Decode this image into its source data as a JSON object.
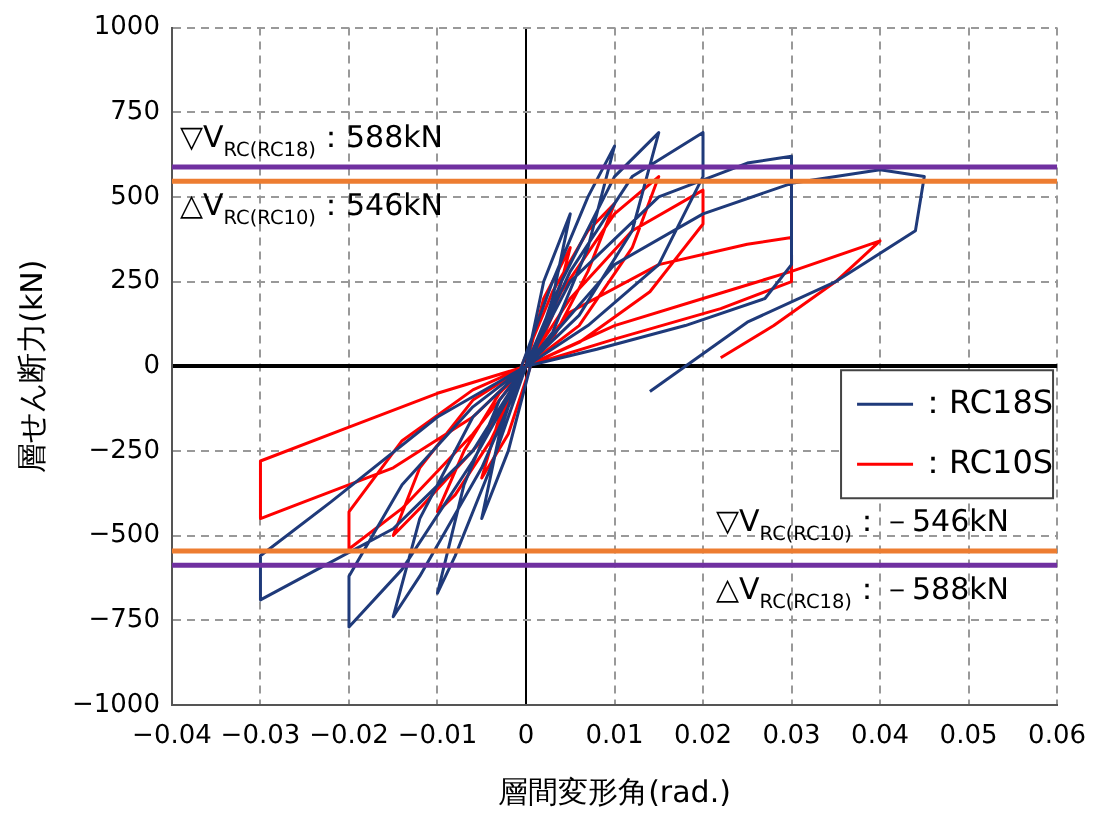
{
  "chart_data": {
    "type": "line",
    "xlabel": "層間変形角(rad.)",
    "ylabel": "層せん断力(kN)",
    "xlim": [
      -0.04,
      0.06
    ],
    "xticks": [
      -0.04,
      -0.03,
      -0.02,
      -0.01,
      0,
      0.01,
      0.02,
      0.03,
      0.04,
      0.05,
      0.06
    ],
    "ylim": [
      -1000,
      1000
    ],
    "yticks": [
      -1000,
      -750,
      -500,
      -250,
      0,
      250,
      500,
      750,
      1000
    ],
    "grid": true,
    "legend": "right",
    "marker": "none",
    "line_style": "solid",
    "series": [
      {
        "name": "：RC18S",
        "color": "#1f3a7a",
        "x": [
          0,
          0.002,
          0.005,
          0.003,
          0.0005,
          -0.002,
          -0.005,
          -0.003,
          -0.0005,
          0.003,
          0.007,
          0.01,
          0.007,
          0.003,
          0,
          -0.004,
          -0.008,
          -0.01,
          -0.007,
          -0.003,
          0,
          0.004,
          0.01,
          0.015,
          0.012,
          0.006,
          0,
          -0.005,
          -0.012,
          -0.015,
          -0.012,
          -0.006,
          0,
          0.005,
          0.012,
          0.02,
          0.02,
          0.015,
          0.007,
          0,
          -0.006,
          -0.014,
          -0.02,
          -0.02,
          -0.014,
          -0.006,
          0,
          0.005,
          0.015,
          0.025,
          0.03,
          0.03,
          0.027,
          0.018,
          0.008,
          0,
          -0.006,
          -0.015,
          -0.025,
          -0.03,
          -0.03,
          -0.022,
          -0.01,
          0,
          0.01,
          0.02,
          0.03,
          0.04,
          0.045,
          0.044,
          0.035,
          0.025,
          0.014
        ],
        "values": [
          0,
          250,
          450,
          200,
          0,
          -250,
          -450,
          -200,
          0,
          250,
          500,
          650,
          350,
          100,
          0,
          -300,
          -560,
          -670,
          -350,
          -100,
          0,
          250,
          560,
          690,
          400,
          150,
          0,
          -300,
          -620,
          -740,
          -450,
          -150,
          0,
          280,
          560,
          690,
          560,
          300,
          120,
          0,
          -280,
          -600,
          -770,
          -620,
          -350,
          -120,
          0,
          250,
          500,
          600,
          620,
          300,
          200,
          120,
          50,
          0,
          -250,
          -480,
          -620,
          -690,
          -560,
          -400,
          -150,
          0,
          300,
          450,
          540,
          580,
          560,
          400,
          250,
          130,
          -75
        ]
      },
      {
        "name": "：RC10S",
        "color": "#ff0000",
        "x": [
          0,
          0.002,
          0.005,
          0.003,
          0.0005,
          -0.002,
          -0.005,
          -0.003,
          -0.0005,
          0.003,
          0.007,
          0.01,
          0.007,
          0.003,
          0,
          -0.004,
          -0.008,
          -0.01,
          -0.007,
          -0.003,
          0,
          0.004,
          0.01,
          0.015,
          0.012,
          0.006,
          0,
          -0.005,
          -0.012,
          -0.015,
          -0.012,
          -0.006,
          0,
          0.005,
          0.012,
          0.02,
          0.02,
          0.014,
          0.006,
          0,
          -0.006,
          -0.014,
          -0.02,
          -0.02,
          -0.014,
          -0.006,
          0,
          0.005,
          0.015,
          0.025,
          0.03,
          0.03,
          0.022,
          0.01,
          0,
          -0.006,
          -0.015,
          -0.025,
          -0.03,
          -0.03,
          -0.02,
          -0.01,
          0,
          0.01,
          0.02,
          0.03,
          0.04,
          0.035,
          0.028,
          0.022
        ],
        "values": [
          0,
          200,
          350,
          150,
          0,
          -200,
          -330,
          -150,
          0,
          220,
          400,
          480,
          280,
          80,
          0,
          -220,
          -380,
          -430,
          -250,
          -80,
          0,
          220,
          450,
          560,
          350,
          120,
          0,
          -220,
          -420,
          -500,
          -300,
          -100,
          0,
          200,
          400,
          520,
          420,
          220,
          70,
          0,
          -200,
          -420,
          -540,
          -430,
          -220,
          -70,
          0,
          160,
          300,
          360,
          380,
          250,
          170,
          80,
          0,
          -150,
          -300,
          -400,
          -450,
          -280,
          -180,
          -80,
          0,
          120,
          200,
          280,
          370,
          250,
          120,
          25
        ]
      }
    ],
    "ref_lines": [
      {
        "axis": "y",
        "value": 588,
        "label": "▽V$_{RC(RC18)}$：588kN",
        "color": "#7030a0"
      },
      {
        "axis": "y",
        "value": 546,
        "label": "△V$_{RC(RC10)}$：546kN",
        "color": "#ed7d31"
      },
      {
        "axis": "y",
        "value": -546,
        "label": "▽V$_{RC(RC10)}$：－546kN",
        "color": "#ed7d31"
      },
      {
        "axis": "y",
        "value": -588,
        "label": "△V$_{RC(RC18)}$：－588kN",
        "color": "#7030a0"
      }
    ]
  }
}
